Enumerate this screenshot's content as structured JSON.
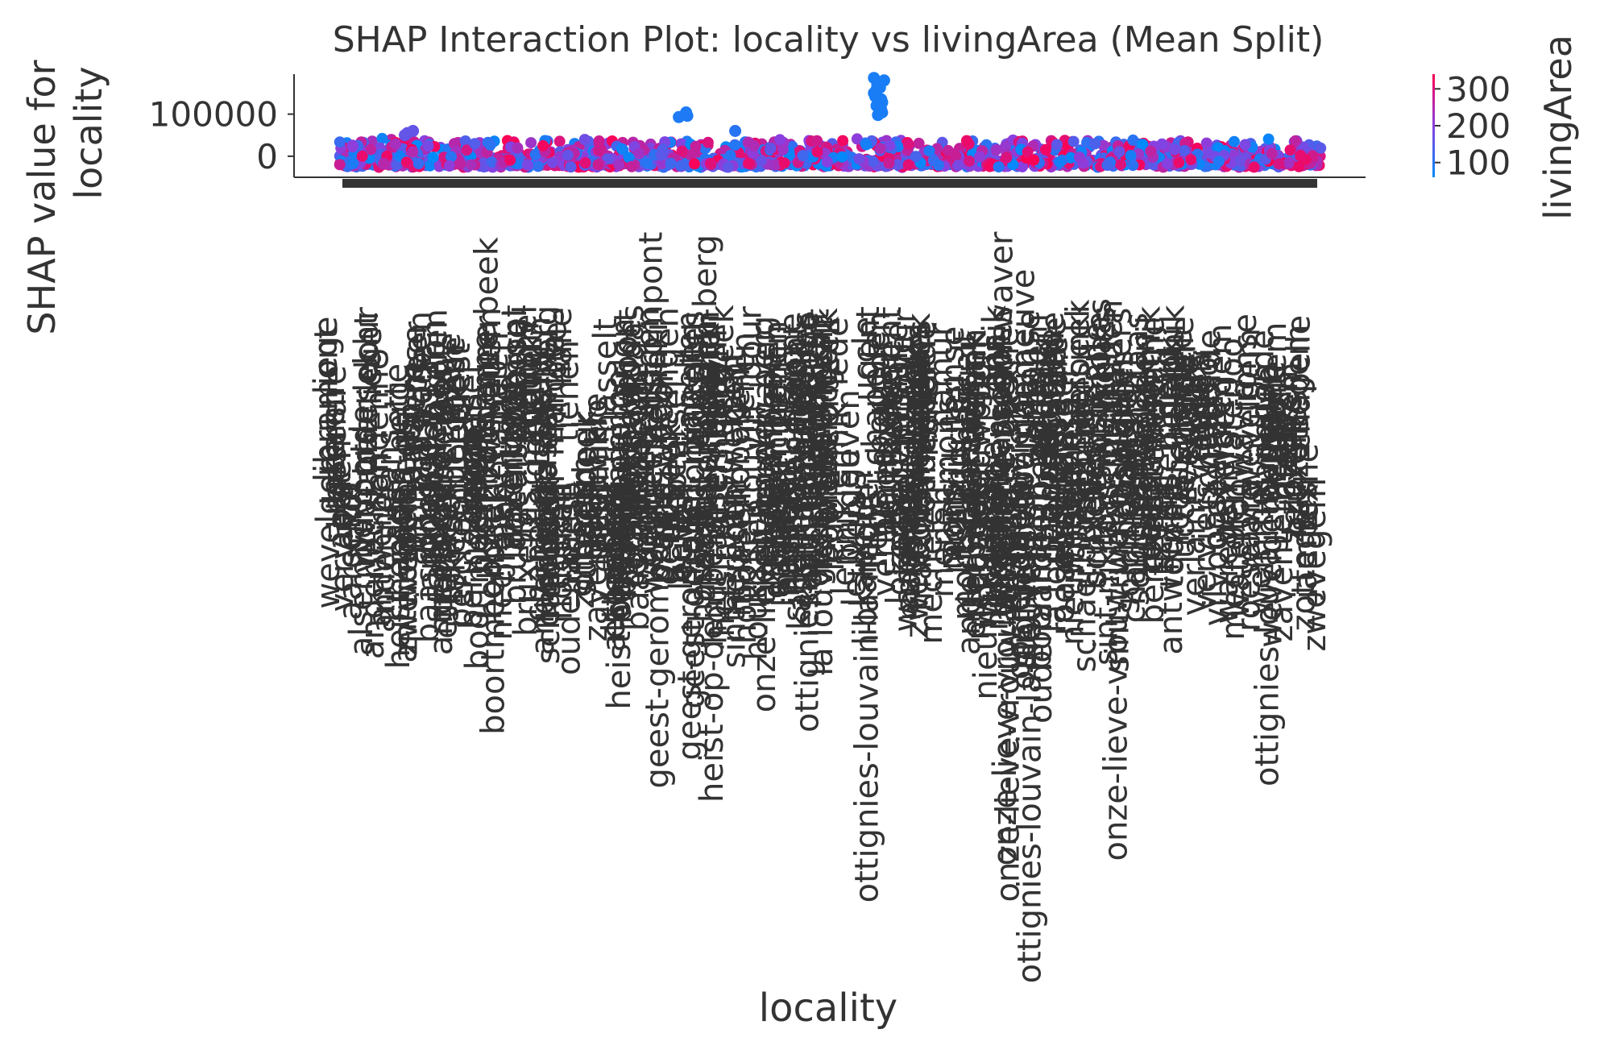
{
  "chart_data": {
    "type": "scatter",
    "title": "SHAP Interaction Plot: locality vs livingArea (Mean Split)",
    "xlabel": "locality",
    "ylabel": "SHAP value for\nlocality",
    "ylim": [
      -50000,
      195000
    ],
    "yticks": [
      0,
      100000
    ],
    "grid": false,
    "colorbar": {
      "label": "livingArea",
      "ticks": [
        100,
        200,
        300
      ],
      "range": [
        60,
        340
      ],
      "colors": [
        "#008bfb",
        "#ff0052"
      ]
    },
    "categories": [
      "aalst",
      "aarschot",
      "alsemberg",
      "anderlecht",
      "andenne",
      "ans",
      "antwerpen",
      "arlon",
      "baasrode",
      "balen",
      "beersel",
      "berchem",
      "beringen",
      "boom",
      "boortmeerbeek",
      "braine",
      "brugge",
      "bruxelles",
      "chapelle",
      "charleroi",
      "couvin",
      "diest",
      "dilbeek",
      "dour",
      "eeklo",
      "etterbeek",
      "evere",
      "fexhe",
      "geel",
      "geest-gerompont",
      "genk",
      "gent",
      "halle",
      "hasselt",
      "heist-op-den-berg",
      "helsinki",
      "herent",
      "hoboken",
      "houthalen",
      "ixelles",
      "jambes",
      "jette",
      "kapellen",
      "kortrijk",
      "la louviere",
      "lede",
      "lennik",
      "leuven",
      "libramont",
      "liege",
      "lier",
      "lokeren",
      "maaseik",
      "marche",
      "mechelen",
      "menen",
      "mons",
      "mortsel",
      "namur",
      "nieuwpoort",
      "ninove",
      "onze-lieve-vrouw-waver",
      "oostende",
      "ottignies-louvain-la-neuve",
      "oudenaarde",
      "peer",
      "roeselare",
      "ronse",
      "schaerbeek",
      "schilde",
      "sint-niklaas",
      "sint-truiden",
      "soignies",
      "spa",
      "temse",
      "tienen",
      "tournai",
      "uccle",
      "verlaine",
      "verviers",
      "vilvoorde",
      "waregem",
      "waterloo",
      "wavre",
      "wemmel",
      "wevelgem",
      "zaventem",
      "zele",
      "zottegem",
      "zwevegem"
    ],
    "category_label_drop_px": [
      328,
      338,
      345,
      345,
      352,
      345,
      350,
      342,
      355,
      350,
      345,
      345,
      345,
      342,
      345,
      338,
      350,
      350,
      345,
      345,
      342,
      345,
      338,
      345,
      345,
      340,
      345,
      360,
      360,
      375,
      370,
      375,
      360,
      372,
      380,
      380,
      372,
      370,
      360,
      350,
      350,
      350,
      355,
      355,
      372,
      365,
      360,
      360,
      350,
      350,
      345,
      345,
      345,
      350,
      345,
      345,
      345,
      360,
      345,
      385,
      390,
      385,
      400,
      440,
      400,
      350,
      345,
      345,
      345,
      330,
      340,
      345,
      340,
      330,
      330,
      330,
      330,
      330,
      345,
      340,
      335,
      330,
      335,
      335,
      335,
      340,
      340,
      335,
      335,
      335
    ],
    "visible_labels": [
      "aalst",
      "ans",
      "anderlecht",
      "andenne",
      "arlon",
      "baasrode",
      "balen",
      "beersel",
      "berchem",
      "boom",
      "boortmeerbeek",
      "braine",
      "brugge",
      "chapelle",
      "charleroi",
      "dour",
      "eeklo",
      "fexhe",
      "geest-gerompont",
      "helsinki",
      "heist-op-den-berg",
      "hoboken",
      "jambes",
      "kapellen",
      "la louviere",
      "lede",
      "lennik",
      "leuven",
      "lier",
      "lokeren",
      "marche",
      "mechelen",
      "mons",
      "mortsel",
      "namur",
      "nieuwpoort",
      "onze-lieve-vrouw-waver",
      "ottignies-louvain-la-neuve",
      "peer",
      "roeselare",
      "ronse",
      "schaerbeek",
      "sint-niklaas",
      "sint-truiden",
      "soignies",
      "spa",
      "temse",
      "verlaine",
      "verviers",
      "vilvoorde",
      "waregem",
      "waterloo",
      "wavre",
      "zaventem",
      "zele",
      "zottegem"
    ],
    "outlier_clusters": [
      {
        "category_index": 31,
        "values": [
          96000,
          100000,
          104000,
          93000
        ],
        "livingArea": 90
      },
      {
        "category_index": 49,
        "values": [
          170000,
          163000,
          158000,
          150000,
          142000,
          135000,
          128000,
          120000,
          112000,
          104000,
          98000,
          186000,
          180000
        ],
        "livingArea": 85
      },
      {
        "category_index": 36,
        "values": [
          60000
        ],
        "livingArea": 100
      },
      {
        "category_index": 6,
        "values": [
          60000,
          55000,
          50000
        ],
        "livingArea": 160
      }
    ]
  }
}
